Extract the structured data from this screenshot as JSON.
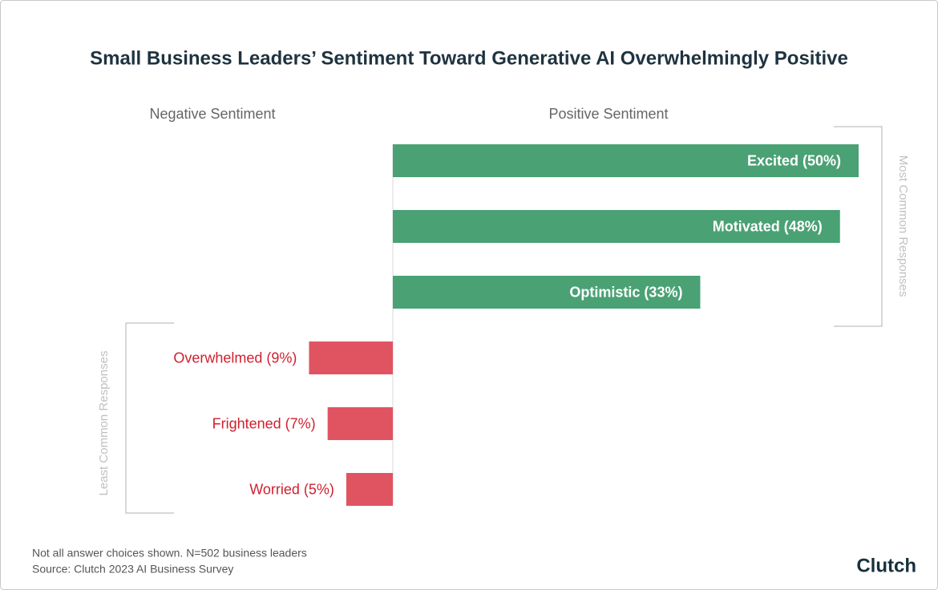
{
  "chart_data": {
    "type": "diverging-bar",
    "title": "Small Business Leaders’ Sentiment Toward Generative AI Overwhelmingly Positive",
    "xlim": [
      0,
      50
    ],
    "series": [
      {
        "name": "Positive Sentiment",
        "color": "#4aa174",
        "direction": "right",
        "values": [
          50,
          48,
          33
        ],
        "value_labels": [
          "Excited (50%)",
          "Motivated (48%)",
          "Optimistic (33%)"
        ]
      },
      {
        "name": "Negative Sentiment",
        "color": "#e05462",
        "direction": "left",
        "values": [
          9,
          7,
          5
        ],
        "value_labels": [
          "Overwhelmed (9%)",
          "Frightened (7%)",
          "Worried (5%)"
        ]
      }
    ],
    "annotations": [
      "Most Common Responses",
      "Least Common Responses"
    ],
    "footnotes": [
      "Not all answer choices shown. N=502 business leaders",
      "Source: Clutch 2023 AI Business Survey"
    ],
    "logo": "Clutch"
  }
}
